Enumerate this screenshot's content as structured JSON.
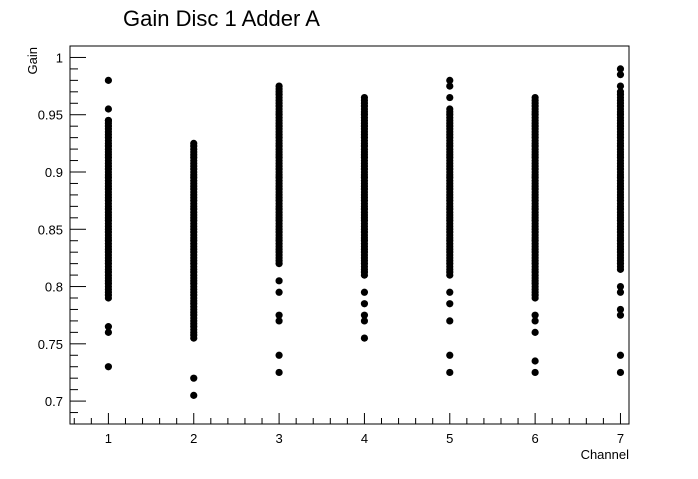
{
  "chart_data": {
    "type": "scatter",
    "title": "Gain Disc 1 Adder A",
    "xlabel": "Channel",
    "ylabel": "Gain",
    "xlim": [
      0.55,
      7.1
    ],
    "ylim": [
      0.68,
      1.01
    ],
    "x_ticks": [
      1,
      2,
      3,
      4,
      5,
      6,
      7
    ],
    "y_ticks": [
      0.7,
      0.75,
      0.8,
      0.85,
      0.9,
      0.95,
      1
    ],
    "y_tick_labels": [
      "0.7",
      "0.75",
      "0.8",
      "0.85",
      "0.9",
      "0.95",
      "1"
    ],
    "marker_color": "#000000",
    "frame_color": "#000000",
    "grid": false,
    "legend": "none",
    "series": [
      {
        "x": 1,
        "dense_ranges": [
          [
            0.79,
            0.945
          ]
        ],
        "points": [
          0.98,
          0.955,
          0.945,
          0.765,
          0.76,
          0.73
        ]
      },
      {
        "x": 2,
        "dense_ranges": [
          [
            0.755,
            0.925
          ]
        ],
        "points": [
          0.72,
          0.705
        ]
      },
      {
        "x": 3,
        "dense_ranges": [
          [
            0.82,
            0.975
          ]
        ],
        "points": [
          0.805,
          0.795,
          0.775,
          0.77,
          0.74,
          0.725
        ]
      },
      {
        "x": 4,
        "dense_ranges": [
          [
            0.81,
            0.965
          ]
        ],
        "points": [
          0.795,
          0.785,
          0.775,
          0.77,
          0.755
        ]
      },
      {
        "x": 5,
        "dense_ranges": [
          [
            0.81,
            0.955
          ]
        ],
        "points": [
          0.98,
          0.975,
          0.965,
          0.795,
          0.785,
          0.77,
          0.74,
          0.725
        ]
      },
      {
        "x": 6,
        "dense_ranges": [
          [
            0.79,
            0.965
          ]
        ],
        "points": [
          0.775,
          0.77,
          0.76,
          0.735,
          0.725
        ]
      },
      {
        "x": 7,
        "dense_ranges": [
          [
            0.815,
            0.97
          ]
        ],
        "points": [
          0.99,
          0.985,
          0.975,
          0.8,
          0.795,
          0.78,
          0.775,
          0.74,
          0.725
        ]
      }
    ]
  }
}
